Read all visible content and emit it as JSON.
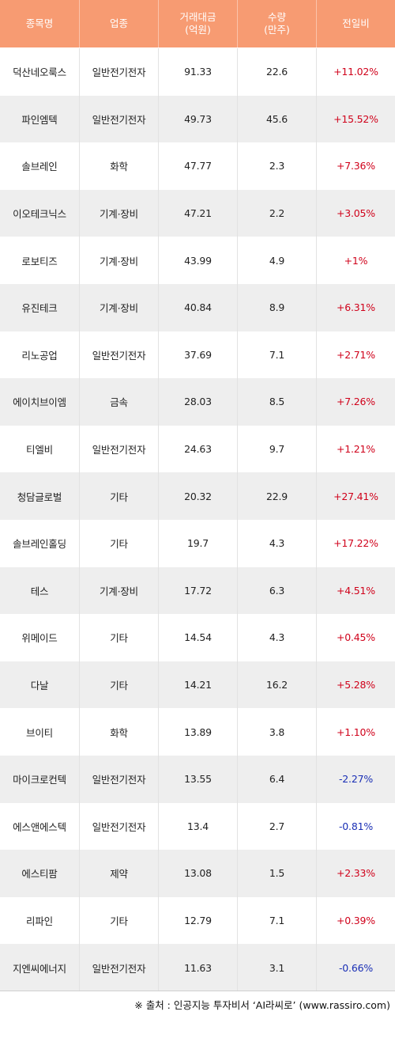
{
  "colors": {
    "header_bg": "#f79b72",
    "stripe": "#eeeeee",
    "up": "#d0021b",
    "down": "#1a2fb5"
  },
  "header": {
    "name": "종목명",
    "sector": "업종",
    "amount": "거래대금\n(억원)",
    "volume": "수량\n(만주)",
    "change": "전일비"
  },
  "rows": [
    {
      "name": "덕산네오룩스",
      "sector": "일반전기전자",
      "amount": "91.33",
      "volume": "22.6",
      "change": "+11.02%",
      "dir": "up"
    },
    {
      "name": "파인엠텍",
      "sector": "일반전기전자",
      "amount": "49.73",
      "volume": "45.6",
      "change": "+15.52%",
      "dir": "up"
    },
    {
      "name": "솔브레인",
      "sector": "화학",
      "amount": "47.77",
      "volume": "2.3",
      "change": "+7.36%",
      "dir": "up"
    },
    {
      "name": "이오테크닉스",
      "sector": "기계·장비",
      "amount": "47.21",
      "volume": "2.2",
      "change": "+3.05%",
      "dir": "up"
    },
    {
      "name": "로보티즈",
      "sector": "기계·장비",
      "amount": "43.99",
      "volume": "4.9",
      "change": "+1%",
      "dir": "up"
    },
    {
      "name": "유진테크",
      "sector": "기계·장비",
      "amount": "40.84",
      "volume": "8.9",
      "change": "+6.31%",
      "dir": "up"
    },
    {
      "name": "리노공업",
      "sector": "일반전기전자",
      "amount": "37.69",
      "volume": "7.1",
      "change": "+2.71%",
      "dir": "up"
    },
    {
      "name": "에이치브이엠",
      "sector": "금속",
      "amount": "28.03",
      "volume": "8.5",
      "change": "+7.26%",
      "dir": "up"
    },
    {
      "name": "티엘비",
      "sector": "일반전기전자",
      "amount": "24.63",
      "volume": "9.7",
      "change": "+1.21%",
      "dir": "up"
    },
    {
      "name": "청담글로벌",
      "sector": "기타",
      "amount": "20.32",
      "volume": "22.9",
      "change": "+27.41%",
      "dir": "up"
    },
    {
      "name": "솔브레인홀딩",
      "sector": "기타",
      "amount": "19.7",
      "volume": "4.3",
      "change": "+17.22%",
      "dir": "up"
    },
    {
      "name": "테스",
      "sector": "기계·장비",
      "amount": "17.72",
      "volume": "6.3",
      "change": "+4.51%",
      "dir": "up"
    },
    {
      "name": "위메이드",
      "sector": "기타",
      "amount": "14.54",
      "volume": "4.3",
      "change": "+0.45%",
      "dir": "up"
    },
    {
      "name": "다날",
      "sector": "기타",
      "amount": "14.21",
      "volume": "16.2",
      "change": "+5.28%",
      "dir": "up"
    },
    {
      "name": "브이티",
      "sector": "화학",
      "amount": "13.89",
      "volume": "3.8",
      "change": "+1.10%",
      "dir": "up"
    },
    {
      "name": "마이크로컨텍",
      "sector": "일반전기전자",
      "amount": "13.55",
      "volume": "6.4",
      "change": "-2.27%",
      "dir": "down"
    },
    {
      "name": "에스앤에스텍",
      "sector": "일반전기전자",
      "amount": "13.4",
      "volume": "2.7",
      "change": "-0.81%",
      "dir": "down"
    },
    {
      "name": "에스티팜",
      "sector": "제약",
      "amount": "13.08",
      "volume": "1.5",
      "change": "+2.33%",
      "dir": "up"
    },
    {
      "name": "리파인",
      "sector": "기타",
      "amount": "12.79",
      "volume": "7.1",
      "change": "+0.39%",
      "dir": "up"
    },
    {
      "name": "지엔씨에너지",
      "sector": "일반전기전자",
      "amount": "11.63",
      "volume": "3.1",
      "change": "-0.66%",
      "dir": "down"
    }
  ],
  "footer": "※ 출처 : 인공지능 투자비서 ‘AI라씨로’ (www.rassiro.com)"
}
